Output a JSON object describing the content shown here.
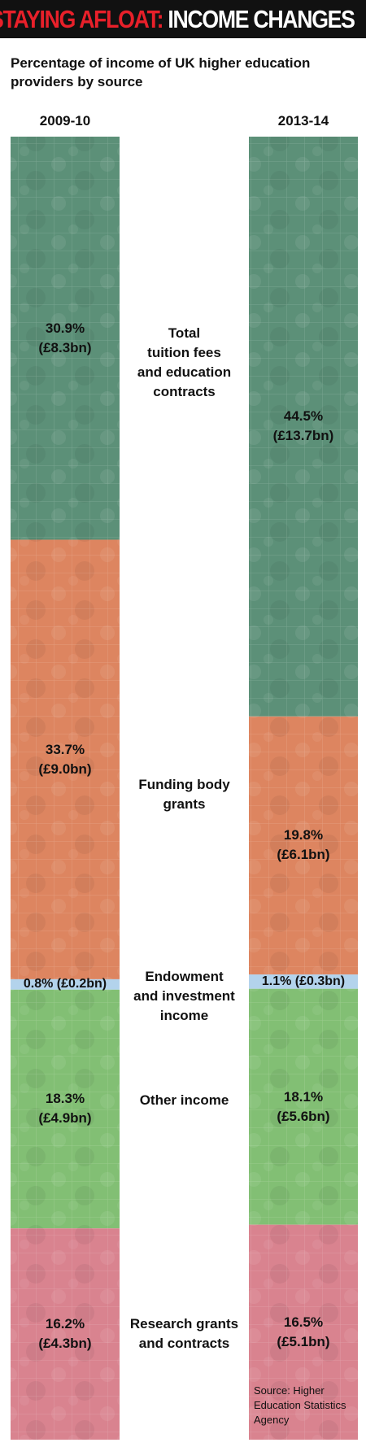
{
  "header": {
    "title_accent": "STAYING AFLOAT:",
    "title_rest": " INCOME CHANGES"
  },
  "subtitle": "Percentage of income of UK higher education providers by source",
  "source": "Source: Higher Education Statistics Agency",
  "colors": {
    "tuition": "#5c9078",
    "funding": "#dd8560",
    "endowment": "#b3d3ec",
    "other": "#82bf74",
    "research": "#d9838f",
    "header_bg": "#111111",
    "header_accent": "#e8202a"
  },
  "chart_data": {
    "type": "bar",
    "stacked": true,
    "title": "Percentage of income of UK higher education providers by source",
    "categories": [
      "2009-10",
      "2013-14"
    ],
    "series": [
      {
        "name": "Total tuition fees and education contracts",
        "values": [
          30.9,
          44.5
        ],
        "labels": [
          "30.9%\n(£8.3bn)",
          "44.5%\n(£13.7bn)"
        ],
        "color_key": "tuition"
      },
      {
        "name": "Funding body grants",
        "values": [
          33.7,
          19.8
        ],
        "labels": [
          "33.7%\n(£9.0bn)",
          "19.8%\n(£6.1bn)"
        ],
        "color_key": "funding"
      },
      {
        "name": "Endowment and investment income",
        "values": [
          0.8,
          1.1
        ],
        "labels": [
          "0.8% (£0.2bn)",
          "1.1% (£0.3bn)"
        ],
        "color_key": "endowment"
      },
      {
        "name": "Other income",
        "values": [
          18.3,
          18.1
        ],
        "labels": [
          "18.3%\n(£4.9bn)",
          "18.1%\n(£5.6bn)"
        ],
        "color_key": "other"
      },
      {
        "name": "Research grants and contracts",
        "values": [
          16.2,
          16.5
        ],
        "labels": [
          "16.2%\n(£4.3bn)",
          "16.5%\n(£5.1bn)"
        ],
        "color_key": "research"
      }
    ],
    "category_labels": [
      "Total\ntuition fees\nand education\ncontracts",
      "Funding body\ngrants",
      "Endowment\nand investment\nincome",
      "Other income",
      "Research grants\nand contracts"
    ],
    "legend": "none",
    "grid": false
  }
}
